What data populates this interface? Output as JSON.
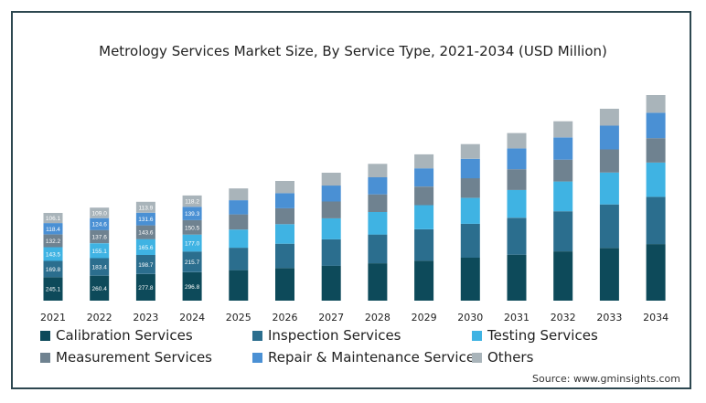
{
  "chart_data": {
    "type": "bar",
    "stacked": true,
    "title": "Metrology Services Market Size, By Service Type, 2021-2034 (USD Million)",
    "categories": [
      "2021",
      "2022",
      "2023",
      "2024",
      "2025",
      "2026",
      "2027",
      "2028",
      "2029",
      "2030",
      "2031",
      "2032",
      "2033",
      "2034"
    ],
    "series": [
      {
        "name": "Calibration Services",
        "color": "#0d4a5a",
        "values": [
          245.1,
          260.4,
          277.8,
          296.8,
          318,
          340,
          364,
          390,
          418,
          448,
          480,
          514,
          550,
          590
        ],
        "labels": [
          "245.1",
          "260.4",
          "277.8",
          "296.8"
        ]
      },
      {
        "name": "Inspection Services",
        "color": "#2b6e8e",
        "values": [
          169.8,
          183.4,
          198.7,
          215.7,
          234,
          254,
          276,
          300,
          326,
          354,
          385,
          418,
          454,
          493
        ],
        "labels": [
          "169.8",
          "183.4",
          "198.7",
          "215.7"
        ]
      },
      {
        "name": "Testing Services",
        "color": "#3fb3e3",
        "values": [
          143.5,
          155.1,
          165.6,
          177.0,
          190,
          204,
          219,
          235,
          252,
          270,
          290,
          311,
          333,
          357
        ],
        "labels": [
          "143.5",
          "155.1",
          "165.6",
          "177.0"
        ]
      },
      {
        "name": "Measurement Services",
        "color": "#6f8290",
        "values": [
          132.2,
          137.6,
          143.6,
          150.5,
          158,
          166,
          175,
          184,
          194,
          205,
          216,
          228,
          241,
          255
        ],
        "labels": [
          "132.2",
          "137.6",
          "143.6",
          "150.5"
        ]
      },
      {
        "name": "Repair & Maintenance Services",
        "color": "#4a90d4",
        "values": [
          118.4,
          124.6,
          131.6,
          139.3,
          148,
          157,
          167,
          178,
          190,
          203,
          217,
          232,
          248,
          265
        ],
        "labels": [
          "118.4",
          "124.6",
          "131.6",
          "139.3"
        ]
      },
      {
        "name": "Others",
        "color": "#a9b4ba",
        "values": [
          106.1,
          109.0,
          113.9,
          118.2,
          123,
          128,
          134,
          140,
          146,
          153,
          160,
          168,
          176,
          185
        ],
        "labels": [
          "106.1",
          "109.0",
          "113.9",
          "118.2"
        ]
      }
    ],
    "legend_position": "bottom",
    "grid": false
  },
  "source": "Source: www.gminsights.com"
}
